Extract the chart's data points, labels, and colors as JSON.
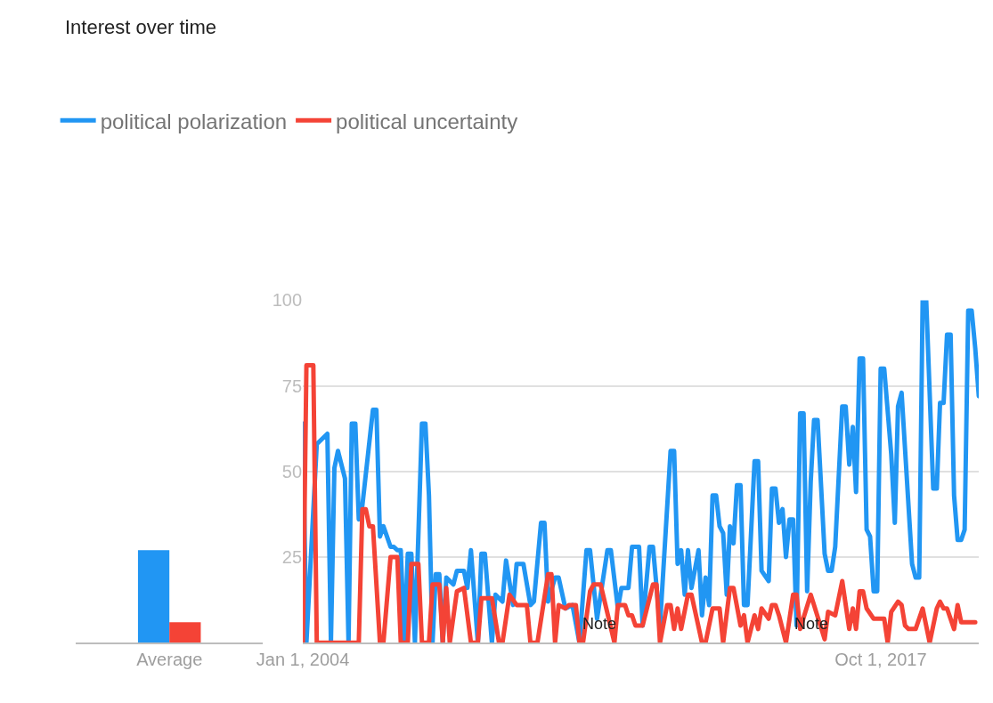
{
  "chart_data": [
    {
      "type": "bar",
      "title": "Interest over time",
      "categories": [
        "Average"
      ],
      "ylim": [
        0,
        100
      ],
      "tick_labels": "x",
      "grid": false,
      "series": [
        {
          "color": "#2196f3",
          "values": [
            27
          ]
        },
        {
          "color": "#f44336",
          "values": [
            6
          ]
        }
      ]
    },
    {
      "type": "line",
      "xlim": [
        "2004-01-01",
        "2020-02-01"
      ],
      "ylim": [
        0,
        100
      ],
      "yticks": [
        25,
        50,
        75,
        100
      ],
      "xticks": [
        {
          "value": "2004-01-01",
          "label": "Jan 1, 2004"
        },
        {
          "value": "2017-10-01",
          "label": "Oct 1, 2017"
        }
      ],
      "grid": "y",
      "legend": "top left",
      "marker": "none",
      "line_style": "solid",
      "annotations": [
        "Note",
        "Note"
      ],
      "series": [
        {
          "name": "political polarization",
          "color": "#2196f3",
          "x": [
            "2004-01",
            "2004-02",
            "2004-05",
            "2004-08",
            "2004-09",
            "2004-10",
            "2004-11",
            "2005-01",
            "2005-02",
            "2005-03",
            "2005-04",
            "2005-05",
            "2005-06",
            "2005-09",
            "2005-10",
            "2005-11",
            "2005-12",
            "2006-01",
            "2006-02",
            "2006-03",
            "2006-04",
            "2006-05",
            "2006-06",
            "2006-07",
            "2006-08",
            "2006-09",
            "2006-11",
            "2006-12",
            "2007-01",
            "2007-02",
            "2007-03",
            "2007-04",
            "2007-05",
            "2007-06",
            "2007-08",
            "2007-09",
            "2007-11",
            "2007-12",
            "2008-01",
            "2008-03",
            "2008-04",
            "2008-05",
            "2008-07",
            "2008-08",
            "2008-10",
            "2008-11",
            "2009-01",
            "2009-02",
            "2009-04",
            "2009-06",
            "2009-07",
            "2009-09",
            "2009-10",
            "2009-11",
            "2010-01",
            "2010-02",
            "2010-04",
            "2010-06",
            "2010-08",
            "2010-10",
            "2010-11",
            "2011-01",
            "2011-04",
            "2011-05",
            "2011-07",
            "2011-08",
            "2011-10",
            "2011-11",
            "2012-01",
            "2012-02",
            "2012-04",
            "2012-05",
            "2012-07",
            "2012-10",
            "2012-11",
            "2012-12",
            "2013-01",
            "2013-02",
            "2013-03",
            "2013-04",
            "2013-06",
            "2013-07",
            "2013-08",
            "2013-09",
            "2013-10",
            "2013-11",
            "2013-12",
            "2014-01",
            "2014-02",
            "2014-03",
            "2014-04",
            "2014-05",
            "2014-06",
            "2014-07",
            "2014-08",
            "2014-10",
            "2014-11",
            "2014-12",
            "2015-02",
            "2015-03",
            "2015-04",
            "2015-05",
            "2015-06",
            "2015-07",
            "2015-08",
            "2015-09",
            "2015-10",
            "2015-11",
            "2015-12",
            "2016-01",
            "2016-02",
            "2016-03",
            "2016-04",
            "2016-06",
            "2016-07",
            "2016-08",
            "2016-09",
            "2016-11",
            "2016-12",
            "2017-01",
            "2017-02",
            "2017-03",
            "2017-04",
            "2017-05",
            "2017-06",
            "2017-07",
            "2017-08",
            "2017-09",
            "2017-10",
            "2017-11",
            "2018-01",
            "2018-02",
            "2018-03",
            "2018-04",
            "2018-07",
            "2018-08",
            "2018-09",
            "2018-10",
            "2018-11",
            "2019-01",
            "2019-02",
            "2019-03",
            "2019-04",
            "2019-05",
            "2019-06",
            "2019-07",
            "2019-08",
            "2019-09",
            "2019-10",
            "2019-11",
            "2019-12",
            "2020-01",
            "2020-02"
          ],
          "values": [
            64,
            0,
            58,
            61,
            0,
            51,
            56,
            48,
            0,
            64,
            64,
            36,
            40,
            68,
            68,
            31,
            34,
            31,
            28,
            28,
            27,
            27,
            0,
            26,
            26,
            0,
            64,
            64,
            43,
            0,
            20,
            20,
            0,
            19,
            17,
            21,
            21,
            16,
            27,
            0,
            26,
            26,
            0,
            14,
            12,
            24,
            11,
            23,
            23,
            11,
            12,
            35,
            35,
            12,
            19,
            19,
            10,
            11,
            0,
            27,
            27,
            7,
            27,
            27,
            10,
            16,
            16,
            28,
            28,
            5,
            28,
            28,
            5,
            56,
            56,
            23,
            27,
            14,
            27,
            16,
            27,
            8,
            19,
            11,
            43,
            43,
            34,
            32,
            14,
            34,
            29,
            46,
            46,
            11,
            11,
            53,
            53,
            21,
            18,
            45,
            45,
            35,
            39,
            25,
            36,
            36,
            5,
            67,
            67,
            15,
            47,
            65,
            65,
            26,
            21,
            21,
            28,
            69,
            69,
            52,
            63,
            44,
            83,
            83,
            33,
            31,
            15,
            15,
            80,
            80,
            55,
            35,
            69,
            73,
            23,
            19,
            19,
            100,
            100,
            45,
            45,
            70,
            70,
            90,
            90,
            43,
            30,
            30,
            33,
            97,
            97,
            86,
            72
          ]
        },
        {
          "name": "political uncertainty",
          "color": "#f44336",
          "x": [
            "2004-01",
            "2004-02",
            "2004-04",
            "2004-05",
            "2005-05",
            "2005-06",
            "2005-07",
            "2005-08",
            "2005-09",
            "2005-11",
            "2005-12",
            "2006-02",
            "2006-04",
            "2006-05",
            "2006-07",
            "2006-08",
            "2006-10",
            "2006-11",
            "2007-01",
            "2007-02",
            "2007-04",
            "2007-05",
            "2007-06",
            "2007-07",
            "2007-09",
            "2007-11",
            "2008-01",
            "2008-03",
            "2008-04",
            "2008-07",
            "2008-09",
            "2008-10",
            "2008-12",
            "2009-02",
            "2009-05",
            "2009-06",
            "2009-08",
            "2009-11",
            "2009-12",
            "2010-01",
            "2010-02",
            "2010-04",
            "2010-05",
            "2010-07",
            "2010-08",
            "2010-09",
            "2010-11",
            "2010-12",
            "2011-02",
            "2011-06",
            "2011-07",
            "2011-09",
            "2011-10",
            "2011-11",
            "2011-12",
            "2012-02",
            "2012-05",
            "2012-06",
            "2012-07",
            "2012-09",
            "2012-10",
            "2012-11",
            "2012-12",
            "2013-01",
            "2013-03",
            "2013-04",
            "2013-07",
            "2013-08",
            "2013-10",
            "2013-12",
            "2014-01",
            "2014-03",
            "2014-04",
            "2014-06",
            "2014-07",
            "2014-08",
            "2014-10",
            "2014-11",
            "2014-12",
            "2015-02",
            "2015-03",
            "2015-04",
            "2015-05",
            "2015-07",
            "2015-09",
            "2015-10",
            "2015-11",
            "2016-02",
            "2016-03",
            "2016-06",
            "2016-07",
            "2016-09",
            "2016-11",
            "2017-01",
            "2017-02",
            "2017-03",
            "2017-04",
            "2017-05",
            "2017-06",
            "2017-08",
            "2017-09",
            "2017-11",
            "2017-12",
            "2018-01",
            "2018-03",
            "2018-04",
            "2018-05",
            "2018-06",
            "2018-08",
            "2018-10",
            "2018-12",
            "2019-02",
            "2019-03",
            "2019-04",
            "2019-05",
            "2019-07",
            "2019-08",
            "2019-09",
            "2019-11",
            "2020-01"
          ],
          "values": [
            0,
            81,
            81,
            0,
            0,
            39,
            39,
            34,
            34,
            0,
            0,
            25,
            25,
            0,
            0,
            23,
            23,
            0,
            0,
            17,
            17,
            0,
            16,
            0,
            15,
            16,
            0,
            0,
            13,
            13,
            0,
            0,
            14,
            11,
            11,
            0,
            0,
            20,
            20,
            0,
            11,
            10,
            11,
            11,
            0,
            0,
            15,
            17,
            17,
            0,
            11,
            11,
            8,
            8,
            5,
            5,
            17,
            17,
            0,
            11,
            11,
            4,
            10,
            4,
            14,
            14,
            0,
            0,
            10,
            10,
            0,
            16,
            16,
            5,
            8,
            0,
            8,
            4,
            10,
            7,
            11,
            11,
            8,
            0,
            14,
            14,
            4,
            14,
            11,
            1,
            9,
            8,
            18,
            4,
            10,
            4,
            15,
            15,
            10,
            7,
            7,
            7,
            0,
            9,
            12,
            11,
            5,
            4,
            4,
            10,
            0,
            10,
            12,
            10,
            10,
            4,
            11,
            6,
            6,
            6
          ]
        }
      ]
    }
  ]
}
